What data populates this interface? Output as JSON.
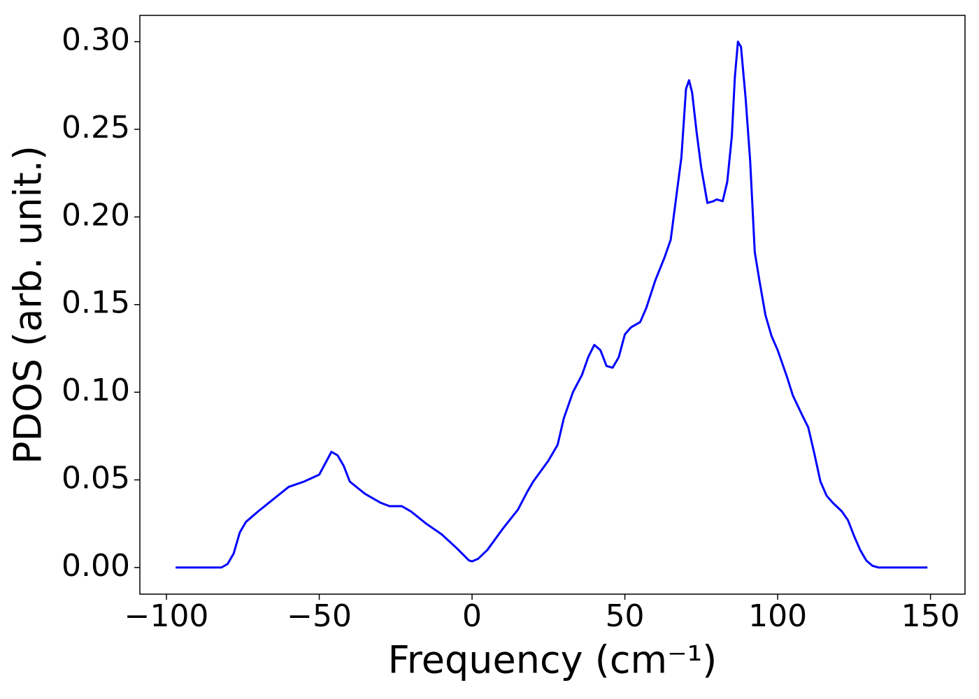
{
  "chart_data": {
    "type": "line",
    "xlabel": "Frequency (cm⁻¹)",
    "ylabel": "PDOS (arb. unit.)",
    "x": [
      -97,
      -90,
      -82,
      -80,
      -78,
      -76,
      -74,
      -70,
      -65,
      -60,
      -55,
      -50,
      -46,
      -44,
      -42,
      -40,
      -35,
      -30,
      -27,
      -23,
      -20,
      -15,
      -10,
      -5,
      -1,
      0,
      2,
      5,
      10,
      15,
      18,
      20,
      25,
      28,
      30,
      33,
      36,
      38,
      40,
      42,
      44,
      46,
      48,
      50,
      52,
      55,
      57,
      60,
      63,
      65,
      67,
      68.5,
      70,
      71,
      72,
      73.5,
      75,
      77,
      79,
      80,
      82,
      83.5,
      85,
      86,
      87,
      88,
      89.5,
      91,
      92.5,
      94,
      96,
      98,
      100,
      103,
      105,
      108,
      110,
      112,
      114,
      116,
      118,
      121,
      123,
      125,
      127,
      129,
      131,
      133,
      140,
      149
    ],
    "series": [
      {
        "name": "PDOS",
        "color": "#0000ff",
        "values": [
          0,
          0,
          0,
          0.002,
          0.008,
          0.02,
          0.026,
          0.032,
          0.039,
          0.046,
          0.049,
          0.053,
          0.066,
          0.064,
          0.058,
          0.049,
          0.042,
          0.037,
          0.035,
          0.035,
          0.032,
          0.025,
          0.019,
          0.011,
          0.004,
          0.0035,
          0.005,
          0.01,
          0.022,
          0.033,
          0.043,
          0.049,
          0.061,
          0.07,
          0.085,
          0.1,
          0.11,
          0.12,
          0.127,
          0.124,
          0.115,
          0.114,
          0.12,
          0.133,
          0.137,
          0.14,
          0.148,
          0.164,
          0.177,
          0.187,
          0.214,
          0.234,
          0.273,
          0.278,
          0.271,
          0.248,
          0.228,
          0.208,
          0.209,
          0.21,
          0.209,
          0.22,
          0.246,
          0.28,
          0.3,
          0.297,
          0.268,
          0.232,
          0.18,
          0.164,
          0.144,
          0.132,
          0.124,
          0.109,
          0.098,
          0.087,
          0.08,
          0.065,
          0.049,
          0.041,
          0.037,
          0.032,
          0.027,
          0.018,
          0.01,
          0.004,
          0.001,
          0,
          0,
          0
        ]
      }
    ],
    "xlim": [
      -108.7,
      161.3
    ],
    "ylim": [
      -0.0152,
      0.315
    ],
    "xticks": [
      {
        "value": -100,
        "label": "−100"
      },
      {
        "value": -50,
        "label": "−50"
      },
      0,
      50,
      100,
      150
    ],
    "yticks": [
      {
        "value": 0,
        "label": "0.00"
      },
      {
        "value": 0.05,
        "label": "0.05"
      },
      {
        "value": 0.1,
        "label": "0.10"
      },
      {
        "value": 0.15,
        "label": "0.15"
      },
      {
        "value": 0.2,
        "label": "0.20"
      },
      {
        "value": 0.25,
        "label": "0.25"
      },
      {
        "value": 0.3,
        "label": "0.30"
      }
    ],
    "grid": false
  }
}
